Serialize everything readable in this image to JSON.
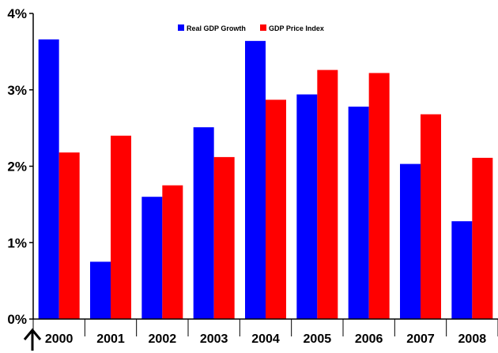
{
  "chart_data": {
    "type": "bar",
    "categories": [
      "2000",
      "2001",
      "2002",
      "2003",
      "2004",
      "2005",
      "2006",
      "2007",
      "2008"
    ],
    "series": [
      {
        "name": "Real GDP Growth",
        "color": "#0000ff",
        "values": [
          3.66,
          0.75,
          1.6,
          2.51,
          3.64,
          2.94,
          2.78,
          2.03,
          1.28
        ]
      },
      {
        "name": "GDP Price Index",
        "color": "#ff0000",
        "values": [
          2.18,
          2.4,
          1.75,
          2.12,
          2.87,
          3.26,
          3.22,
          2.68,
          2.11
        ]
      }
    ],
    "y_ticks": [
      "0%",
      "1%",
      "2%",
      "3%",
      "4%"
    ],
    "ylim": [
      0,
      4
    ],
    "grid": false,
    "legend_position": "top-right",
    "annotation_icon": "up-arrow-icon"
  }
}
